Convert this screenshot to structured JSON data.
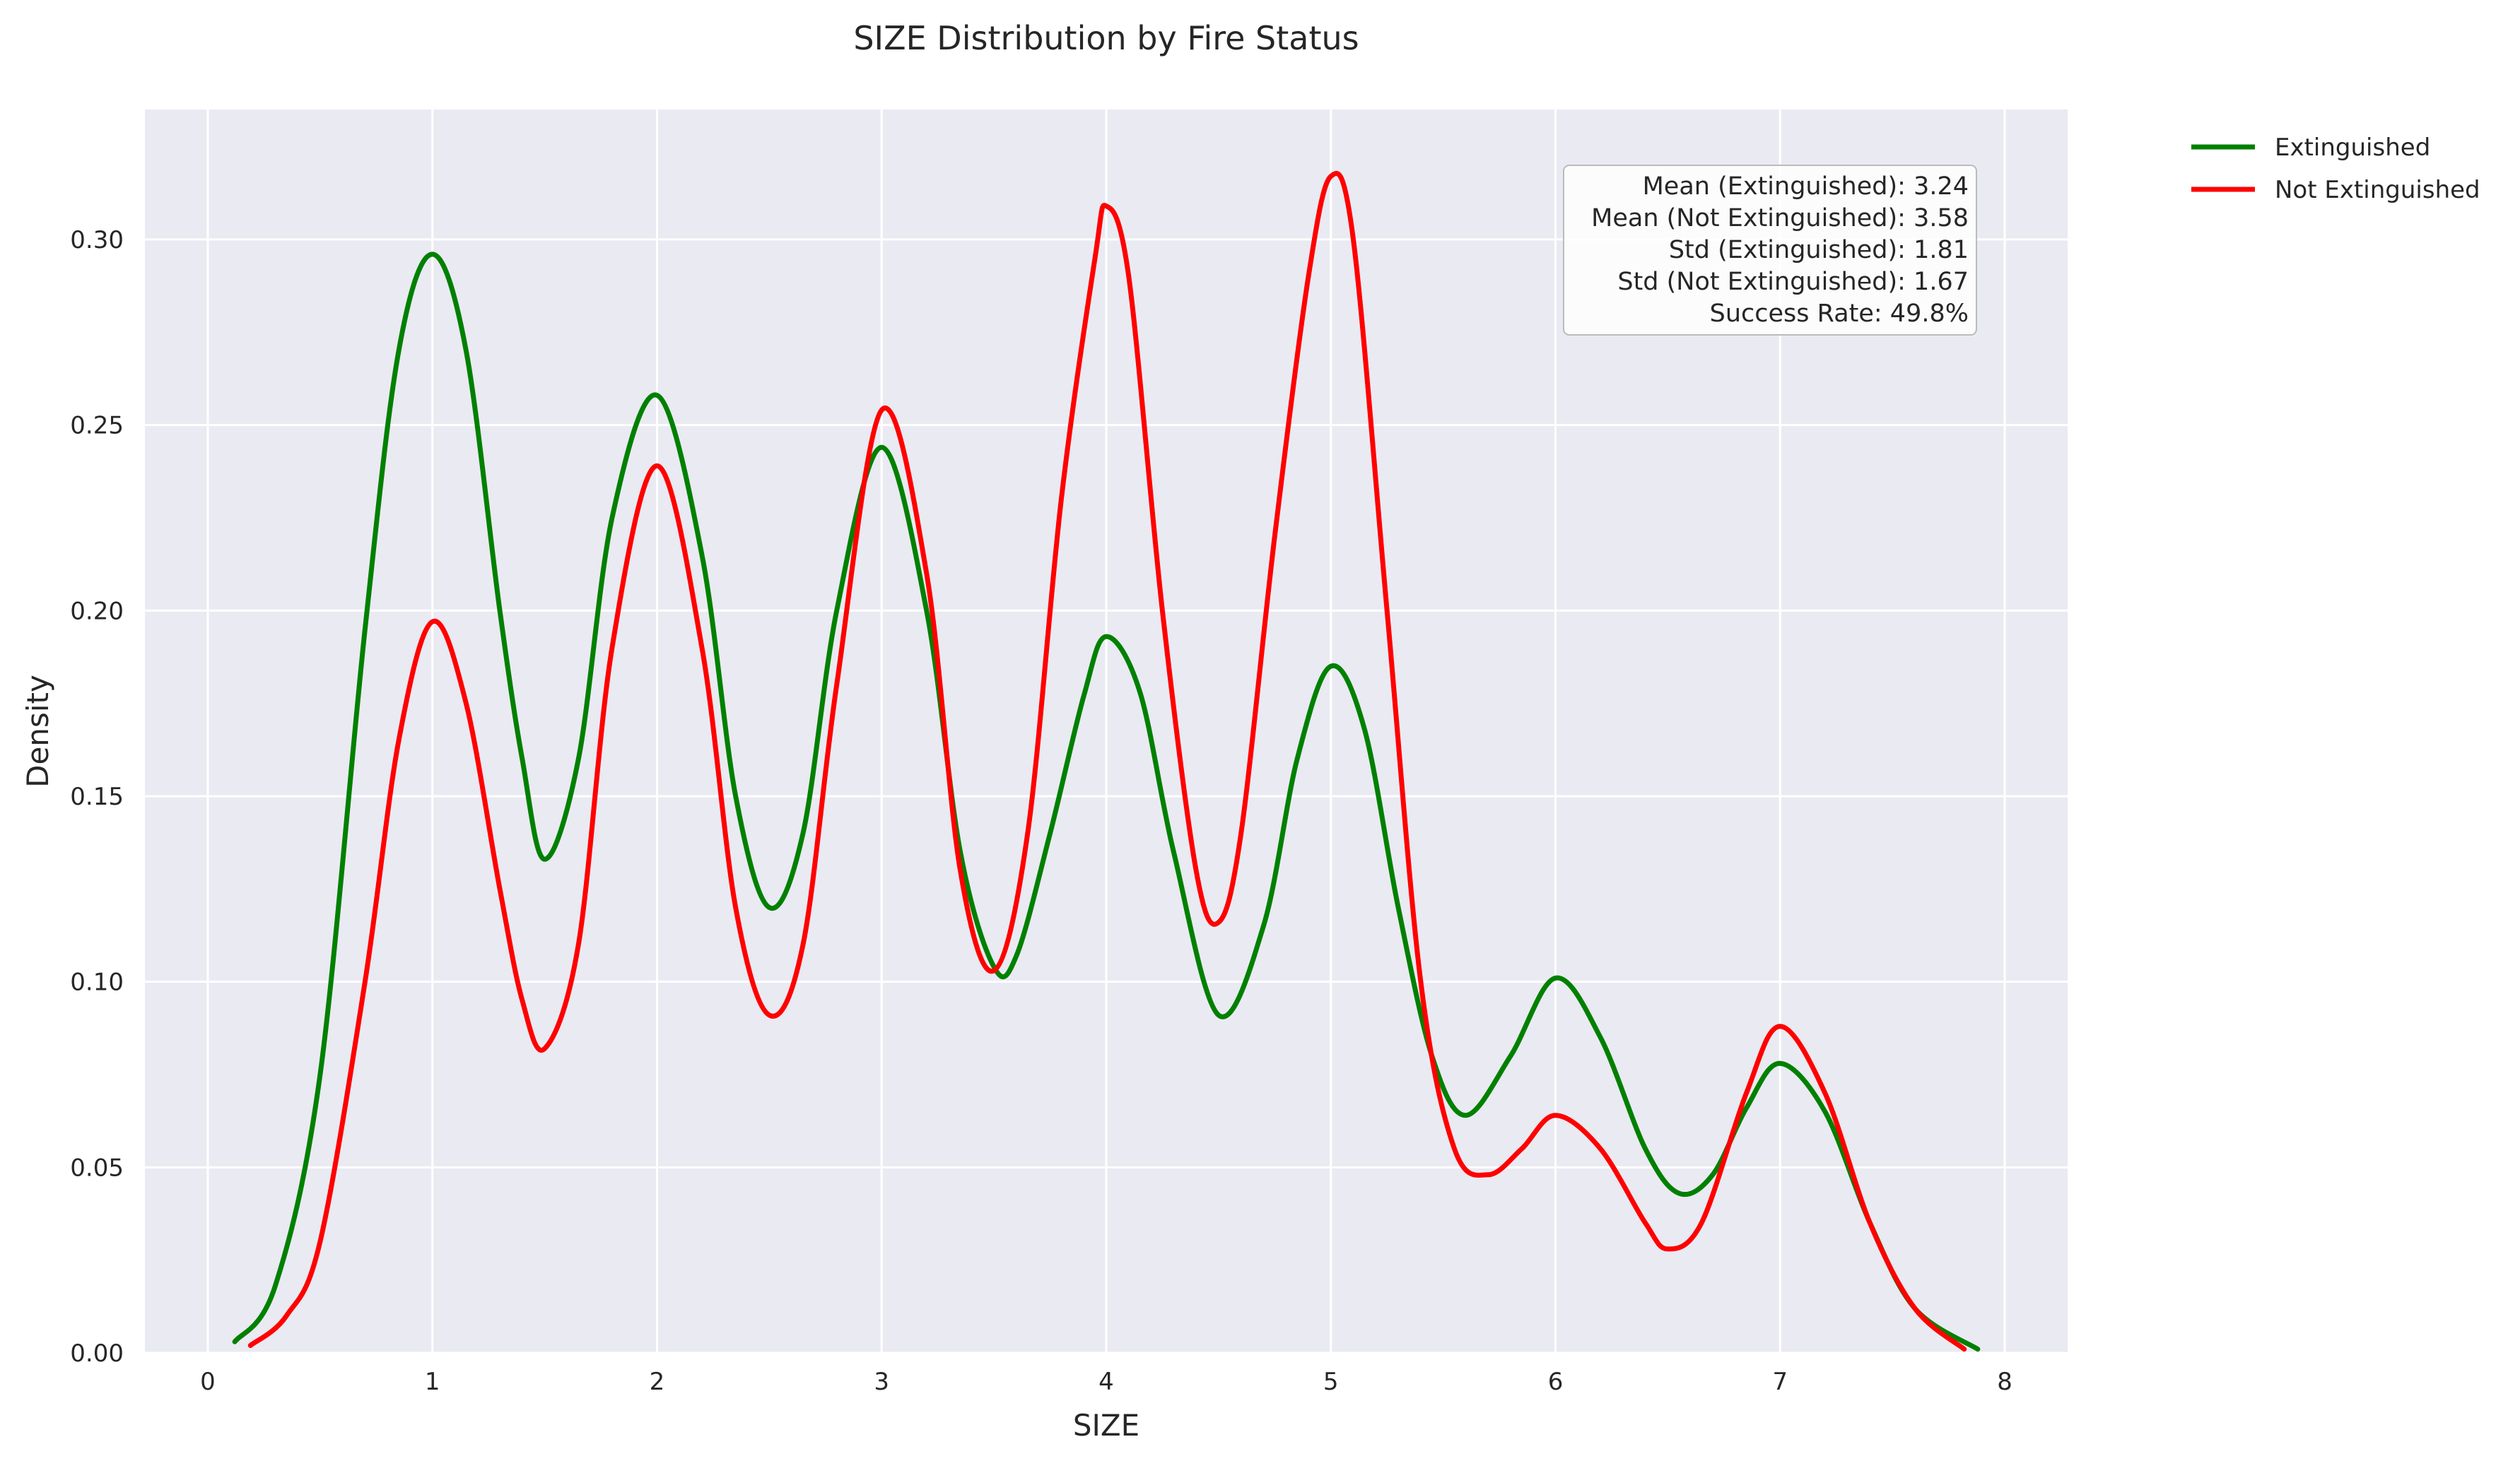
{
  "chart_data": {
    "type": "line",
    "title": "SIZE Distribution by Fire Status",
    "xlabel": "SIZE",
    "ylabel": "Density",
    "xlim": [
      -0.28,
      8.28
    ],
    "ylim": [
      0,
      0.335
    ],
    "xticks": [
      0,
      1,
      2,
      3,
      4,
      5,
      6,
      7,
      8
    ],
    "xtick_labels": [
      "0",
      "1",
      "2",
      "3",
      "4",
      "5",
      "6",
      "7",
      "8"
    ],
    "yticks": [
      0,
      0.05,
      0.1,
      0.15,
      0.2,
      0.25,
      0.3
    ],
    "ytick_labels": [
      "0.00",
      "0.05",
      "0.10",
      "0.15",
      "0.20",
      "0.25",
      "0.30"
    ],
    "grid": true,
    "legend_position": "outside-top-right",
    "background": "#EAEAF2",
    "series": [
      {
        "name": "Extinguished",
        "color": "#008000",
        "x": [
          0.12,
          0.3,
          0.5,
          0.7,
          0.85,
          1.0,
          1.15,
          1.3,
          1.4,
          1.5,
          1.65,
          1.8,
          2.0,
          2.2,
          2.35,
          2.5,
          2.65,
          2.8,
          3.0,
          3.2,
          3.35,
          3.5,
          3.6,
          3.75,
          3.9,
          4.0,
          4.15,
          4.3,
          4.5,
          4.7,
          4.85,
          5.0,
          5.15,
          5.3,
          5.45,
          5.6,
          5.8,
          6.0,
          6.2,
          6.4,
          6.55,
          6.7,
          6.85,
          7.0,
          7.2,
          7.4,
          7.6,
          7.88
        ],
        "values": [
          0.003,
          0.018,
          0.075,
          0.195,
          0.27,
          0.296,
          0.27,
          0.2,
          0.16,
          0.133,
          0.16,
          0.225,
          0.258,
          0.215,
          0.15,
          0.12,
          0.14,
          0.2,
          0.244,
          0.2,
          0.135,
          0.104,
          0.107,
          0.14,
          0.177,
          0.193,
          0.178,
          0.135,
          0.091,
          0.115,
          0.16,
          0.185,
          0.168,
          0.12,
          0.08,
          0.064,
          0.08,
          0.101,
          0.085,
          0.055,
          0.043,
          0.048,
          0.066,
          0.078,
          0.065,
          0.035,
          0.012,
          0.001
        ]
      },
      {
        "name": "Not Extinguished",
        "color": "#ff0000",
        "x": [
          0.19,
          0.35,
          0.5,
          0.7,
          0.85,
          1.0,
          1.15,
          1.3,
          1.4,
          1.5,
          1.65,
          1.8,
          2.0,
          2.2,
          2.35,
          2.5,
          2.65,
          2.8,
          3.0,
          3.2,
          3.35,
          3.5,
          3.65,
          3.8,
          3.95,
          4.0,
          4.1,
          4.25,
          4.4,
          4.5,
          4.6,
          4.75,
          4.9,
          5.0,
          5.1,
          5.25,
          5.4,
          5.55,
          5.7,
          5.85,
          6.0,
          6.2,
          6.4,
          6.5,
          6.65,
          6.85,
          7.0,
          7.2,
          7.4,
          7.6,
          7.82
        ],
        "values": [
          0.002,
          0.01,
          0.03,
          0.1,
          0.165,
          0.197,
          0.175,
          0.125,
          0.095,
          0.082,
          0.11,
          0.19,
          0.239,
          0.19,
          0.12,
          0.091,
          0.11,
          0.18,
          0.254,
          0.21,
          0.13,
          0.103,
          0.14,
          0.23,
          0.295,
          0.309,
          0.29,
          0.2,
          0.13,
          0.116,
          0.14,
          0.22,
          0.29,
          0.317,
          0.3,
          0.2,
          0.1,
          0.055,
          0.048,
          0.055,
          0.064,
          0.055,
          0.035,
          0.028,
          0.035,
          0.07,
          0.088,
          0.07,
          0.035,
          0.012,
          0.001
        ]
      }
    ],
    "stats_box": {
      "lines": [
        "Mean (Extinguished): 3.24",
        "Mean (Not Extinguished): 3.58",
        "Std (Extinguished): 1.81",
        "Std (Not Extinguished): 1.67",
        "Success Rate: 49.8%"
      ]
    }
  }
}
